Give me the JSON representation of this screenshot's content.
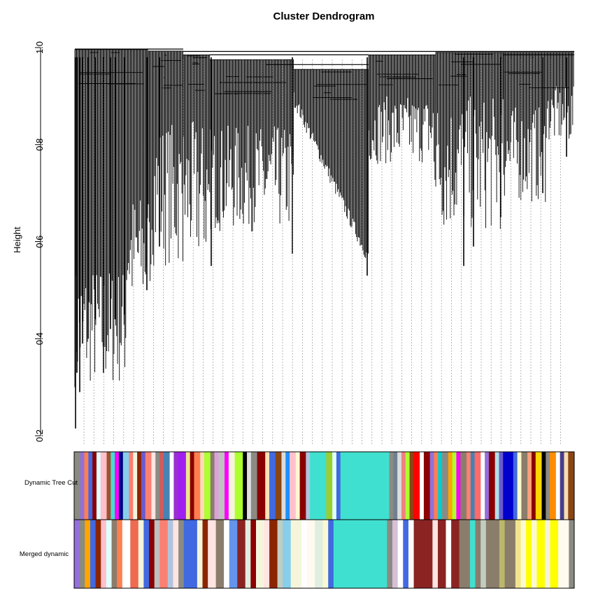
{
  "chart_data": {
    "type": "dendrogram",
    "title": "Cluster Dendrogram",
    "ylabel": "Height",
    "ylim": [
      0.2,
      1.0
    ],
    "yticks": [
      "0.2",
      "0.4",
      "0.6",
      "0.8",
      "1.0"
    ],
    "color_rows": [
      {
        "label": "Dynamic Tree Cut",
        "segments": [
          {
            "w": 3,
            "c": "#8b8b83"
          },
          {
            "w": 2,
            "c": "#9370db"
          },
          {
            "w": 2,
            "c": "#ff7f50"
          },
          {
            "w": 2,
            "c": "#4169e1"
          },
          {
            "w": 2,
            "c": "#8b0000"
          },
          {
            "w": 2,
            "c": "#e0ffff"
          },
          {
            "w": 3,
            "c": "#ffc0cb"
          },
          {
            "w": 2,
            "c": "#a0522d"
          },
          {
            "w": 2,
            "c": "#40e0d0"
          },
          {
            "w": 2,
            "c": "#ff00ff"
          },
          {
            "w": 2,
            "c": "#000080"
          },
          {
            "w": 3,
            "c": "#87ceeb"
          },
          {
            "w": 2,
            "c": "#fa8072"
          },
          {
            "w": 2,
            "c": "#f5f5dc"
          },
          {
            "w": 2,
            "c": "#8b2500"
          },
          {
            "w": 2,
            "c": "#6a5acd"
          },
          {
            "w": 3,
            "c": "#fa8072"
          },
          {
            "w": 2,
            "c": "#ffe4e1"
          },
          {
            "w": 2,
            "c": "#8b8b83"
          },
          {
            "w": 2,
            "c": "#cd5c5c"
          },
          {
            "w": 3,
            "c": "#4682b4"
          },
          {
            "w": 2,
            "c": "#ffffff"
          },
          {
            "w": 2,
            "c": "#9932cc"
          },
          {
            "w": 4,
            "c": "#a020f0"
          },
          {
            "w": 2,
            "c": "#f0e68c"
          },
          {
            "w": 2,
            "c": "#8b0000"
          },
          {
            "w": 3,
            "c": "#ff7f50"
          },
          {
            "w": 2,
            "c": "#ffdab9"
          },
          {
            "w": 3,
            "c": "#adff2f"
          },
          {
            "w": 2,
            "c": "#8b7d6b"
          },
          {
            "w": 2,
            "c": "#dda0dd"
          },
          {
            "w": 3,
            "c": "#c0c0c0"
          },
          {
            "w": 2,
            "c": "#ff00ff"
          },
          {
            "w": 3,
            "c": "#f5f5dc"
          },
          {
            "w": 4,
            "c": "#adff2f"
          },
          {
            "w": 2,
            "c": "#000000"
          },
          {
            "w": 2,
            "c": "#e0e0e0"
          },
          {
            "w": 3,
            "c": "#8b8b83"
          },
          {
            "w": 4,
            "c": "#8b0000"
          },
          {
            "w": 2,
            "c": "#ffe4b5"
          },
          {
            "w": 3,
            "c": "#4169e1"
          },
          {
            "w": 3,
            "c": "#8b4513"
          },
          {
            "w": 2,
            "c": "#dcdcdc"
          },
          {
            "w": 2,
            "c": "#1e90ff"
          },
          {
            "w": 3,
            "c": "#ffc0cb"
          },
          {
            "w": 2,
            "c": "#fafad2"
          },
          {
            "w": 3,
            "c": "#8b0000"
          },
          {
            "w": 2,
            "c": "#b0c4de"
          },
          {
            "w": 8,
            "c": "#40e0d0"
          },
          {
            "w": 3,
            "c": "#9acd32"
          },
          {
            "w": 2,
            "c": "#e0ffff"
          },
          {
            "w": 2,
            "c": "#4169e1"
          },
          {
            "w": 24,
            "c": "#40e0d0"
          },
          {
            "w": 2,
            "c": "#8b8b83"
          },
          {
            "w": 2,
            "c": "#708090"
          },
          {
            "w": 2,
            "c": "#dcdcdc"
          },
          {
            "w": 2,
            "c": "#f08080"
          },
          {
            "w": 2,
            "c": "#adff2f"
          },
          {
            "w": 2,
            "c": "#8b4513"
          },
          {
            "w": 3,
            "c": "#ff0000"
          },
          {
            "w": 2,
            "c": "#ffffff"
          },
          {
            "w": 3,
            "c": "#8b0000"
          },
          {
            "w": 2,
            "c": "#9370db"
          },
          {
            "w": 2,
            "c": "#ff7f50"
          },
          {
            "w": 2,
            "c": "#00ced1"
          },
          {
            "w": 3,
            "c": "#8b8b83"
          },
          {
            "w": 2,
            "c": "#ffa500"
          },
          {
            "w": 2,
            "c": "#adff2f"
          },
          {
            "w": 2,
            "c": "#ff00ff"
          },
          {
            "w": 3,
            "c": "#8b7d6b"
          },
          {
            "w": 2,
            "c": "#fa8072"
          },
          {
            "w": 2,
            "c": "#4682b4"
          },
          {
            "w": 3,
            "c": "#ff6a6a"
          },
          {
            "w": 2,
            "c": "#ffffff"
          },
          {
            "w": 2,
            "c": "#9370db"
          },
          {
            "w": 3,
            "c": "#8b0000"
          },
          {
            "w": 2,
            "c": "#b0e0e6"
          },
          {
            "w": 2,
            "c": "#6a5acd"
          },
          {
            "w": 5,
            "c": "#0000cd"
          },
          {
            "w": 2,
            "c": "#4169e1"
          },
          {
            "w": 2,
            "c": "#fffacd"
          },
          {
            "w": 3,
            "c": "#8b7d6b"
          },
          {
            "w": 2,
            "c": "#ffa07a"
          },
          {
            "w": 2,
            "c": "#8b0000"
          },
          {
            "w": 3,
            "c": "#ffd700"
          },
          {
            "w": 2,
            "c": "#000000"
          },
          {
            "w": 2,
            "c": "#8b8b83"
          },
          {
            "w": 3,
            "c": "#ff8c00"
          },
          {
            "w": 2,
            "c": "#ffffff"
          },
          {
            "w": 2,
            "c": "#483d8b"
          },
          {
            "w": 2,
            "c": "#f5deb3"
          },
          {
            "w": 3,
            "c": "#8b4513"
          }
        ]
      },
      {
        "label": "Merged dynamic",
        "segments": [
          {
            "w": 2,
            "c": "#9370db"
          },
          {
            "w": 2,
            "c": "#8b8b83"
          },
          {
            "w": 2,
            "c": "#ffa500"
          },
          {
            "w": 2,
            "c": "#4169e1"
          },
          {
            "w": 2,
            "c": "#8b2500"
          },
          {
            "w": 2,
            "c": "#ffc0cb"
          },
          {
            "w": 2,
            "c": "#e0ffff"
          },
          {
            "w": 2,
            "c": "#8b7d6b"
          },
          {
            "w": 2,
            "c": "#ff7f50"
          },
          {
            "w": 3,
            "c": "#ffffff"
          },
          {
            "w": 3,
            "c": "#ee6a50"
          },
          {
            "w": 2,
            "c": "#f5f5dc"
          },
          {
            "w": 2,
            "c": "#4169e1"
          },
          {
            "w": 2,
            "c": "#8b0000"
          },
          {
            "w": 2,
            "c": "#c0c0c0"
          },
          {
            "w": 3,
            "c": "#fa8072"
          },
          {
            "w": 2,
            "c": "#b0c4de"
          },
          {
            "w": 2,
            "c": "#ffe4e1"
          },
          {
            "w": 2,
            "c": "#8b8b83"
          },
          {
            "w": 5,
            "c": "#4169e1"
          },
          {
            "w": 2,
            "c": "#f5f5dc"
          },
          {
            "w": 2,
            "c": "#8b2500"
          },
          {
            "w": 3,
            "c": "#ffe4e1"
          },
          {
            "w": 3,
            "c": "#8b7d6b"
          },
          {
            "w": 2,
            "c": "#ffffff"
          },
          {
            "w": 3,
            "c": "#6495ed"
          },
          {
            "w": 3,
            "c": "#8b2323"
          },
          {
            "w": 2,
            "c": "#e0eee0"
          },
          {
            "w": 2,
            "c": "#8b0000"
          },
          {
            "w": 3,
            "c": "#f5f5dc"
          },
          {
            "w": 2,
            "c": "#ffe4e1"
          },
          {
            "w": 3,
            "c": "#8b2500"
          },
          {
            "w": 2,
            "c": "#c1cdc1"
          },
          {
            "w": 3,
            "c": "#87ceeb"
          },
          {
            "w": 4,
            "c": "#f5f5dc"
          },
          {
            "w": 2,
            "c": "#ffffff"
          },
          {
            "w": 3,
            "c": "#fffaf0"
          },
          {
            "w": 3,
            "c": "#e0eee0"
          },
          {
            "w": 2,
            "c": "#fafad2"
          },
          {
            "w": 2,
            "c": "#4169e1"
          },
          {
            "w": 20,
            "c": "#40e0d0"
          },
          {
            "w": 2,
            "c": "#8b8b83"
          },
          {
            "w": 2,
            "c": "#d8bfd8"
          },
          {
            "w": 2,
            "c": "#ffffff"
          },
          {
            "w": 2,
            "c": "#4169e1"
          },
          {
            "w": 2,
            "c": "#fafafa"
          },
          {
            "w": 7,
            "c": "#8b2323"
          },
          {
            "w": 2,
            "c": "#ffe4e1"
          },
          {
            "w": 3,
            "c": "#8b2323"
          },
          {
            "w": 2,
            "c": "#ffffff"
          },
          {
            "w": 3,
            "c": "#8b2323"
          },
          {
            "w": 4,
            "c": "#8b7d6b"
          },
          {
            "w": 2,
            "c": "#40e0d0"
          },
          {
            "w": 2,
            "c": "#8b7d6b"
          },
          {
            "w": 2,
            "c": "#c1cdc1"
          },
          {
            "w": 5,
            "c": "#8b7d6b"
          },
          {
            "w": 2,
            "c": "#bdb76b"
          },
          {
            "w": 4,
            "c": "#8b7d6b"
          },
          {
            "w": 2,
            "c": "#f0e68c"
          },
          {
            "w": 2,
            "c": "#fffacd"
          },
          {
            "w": 2,
            "c": "#ffff00"
          },
          {
            "w": 2,
            "c": "#fafad2"
          },
          {
            "w": 3,
            "c": "#ffff00"
          },
          {
            "w": 2,
            "c": "#f5f5dc"
          },
          {
            "w": 3,
            "c": "#ffff00"
          },
          {
            "w": 4,
            "c": "#fffaf0"
          },
          {
            "w": 2,
            "c": "#8b8b83"
          }
        ]
      }
    ]
  }
}
